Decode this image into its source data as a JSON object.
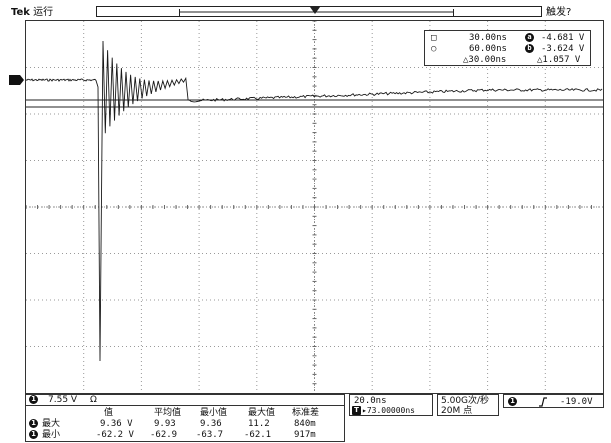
{
  "header": {
    "brand": "Tek",
    "run_status": "运行",
    "trigger_status": "触发?"
  },
  "screen": {
    "colors": {
      "trace": "#1a1a1a",
      "grid": "#9a9a9a",
      "cursor": "#222222"
    },
    "trigger_marker": "T",
    "channel_marker": "1",
    "cursor_labels": {
      "a": "a",
      "b": "b"
    }
  },
  "cursor_readout": {
    "t1": "30.00ns",
    "t2": "60.00ns",
    "dt": "△30.00ns",
    "va": "-4.681 V",
    "vb": "-3.624 V",
    "dv": "△1.057 V",
    "icon1": "square-icon",
    "icon2": "circle-icon"
  },
  "channel": {
    "number": "1",
    "scale": "7.55 V",
    "coupling": "Ω"
  },
  "stats": {
    "headers": [
      "值",
      "平均值",
      "最小值",
      "最大值",
      "标准差"
    ],
    "rows": [
      {
        "label": "最大",
        "values": [
          "9.36 V",
          "9.93",
          "9.36",
          "11.2",
          "840m"
        ]
      },
      {
        "label": "最小",
        "values": [
          "-62.2 V",
          "-62.9",
          "-63.7",
          "-62.1",
          "917m"
        ]
      }
    ]
  },
  "timebase": {
    "scale": "20.0ns",
    "position": "▸73.00000ns",
    "sample_rate": "5.00G次/秒",
    "record_length": "20M 点"
  },
  "trigger": {
    "source": "1",
    "slope_icon": "rising-edge-icon",
    "level": "-19.0V"
  }
}
